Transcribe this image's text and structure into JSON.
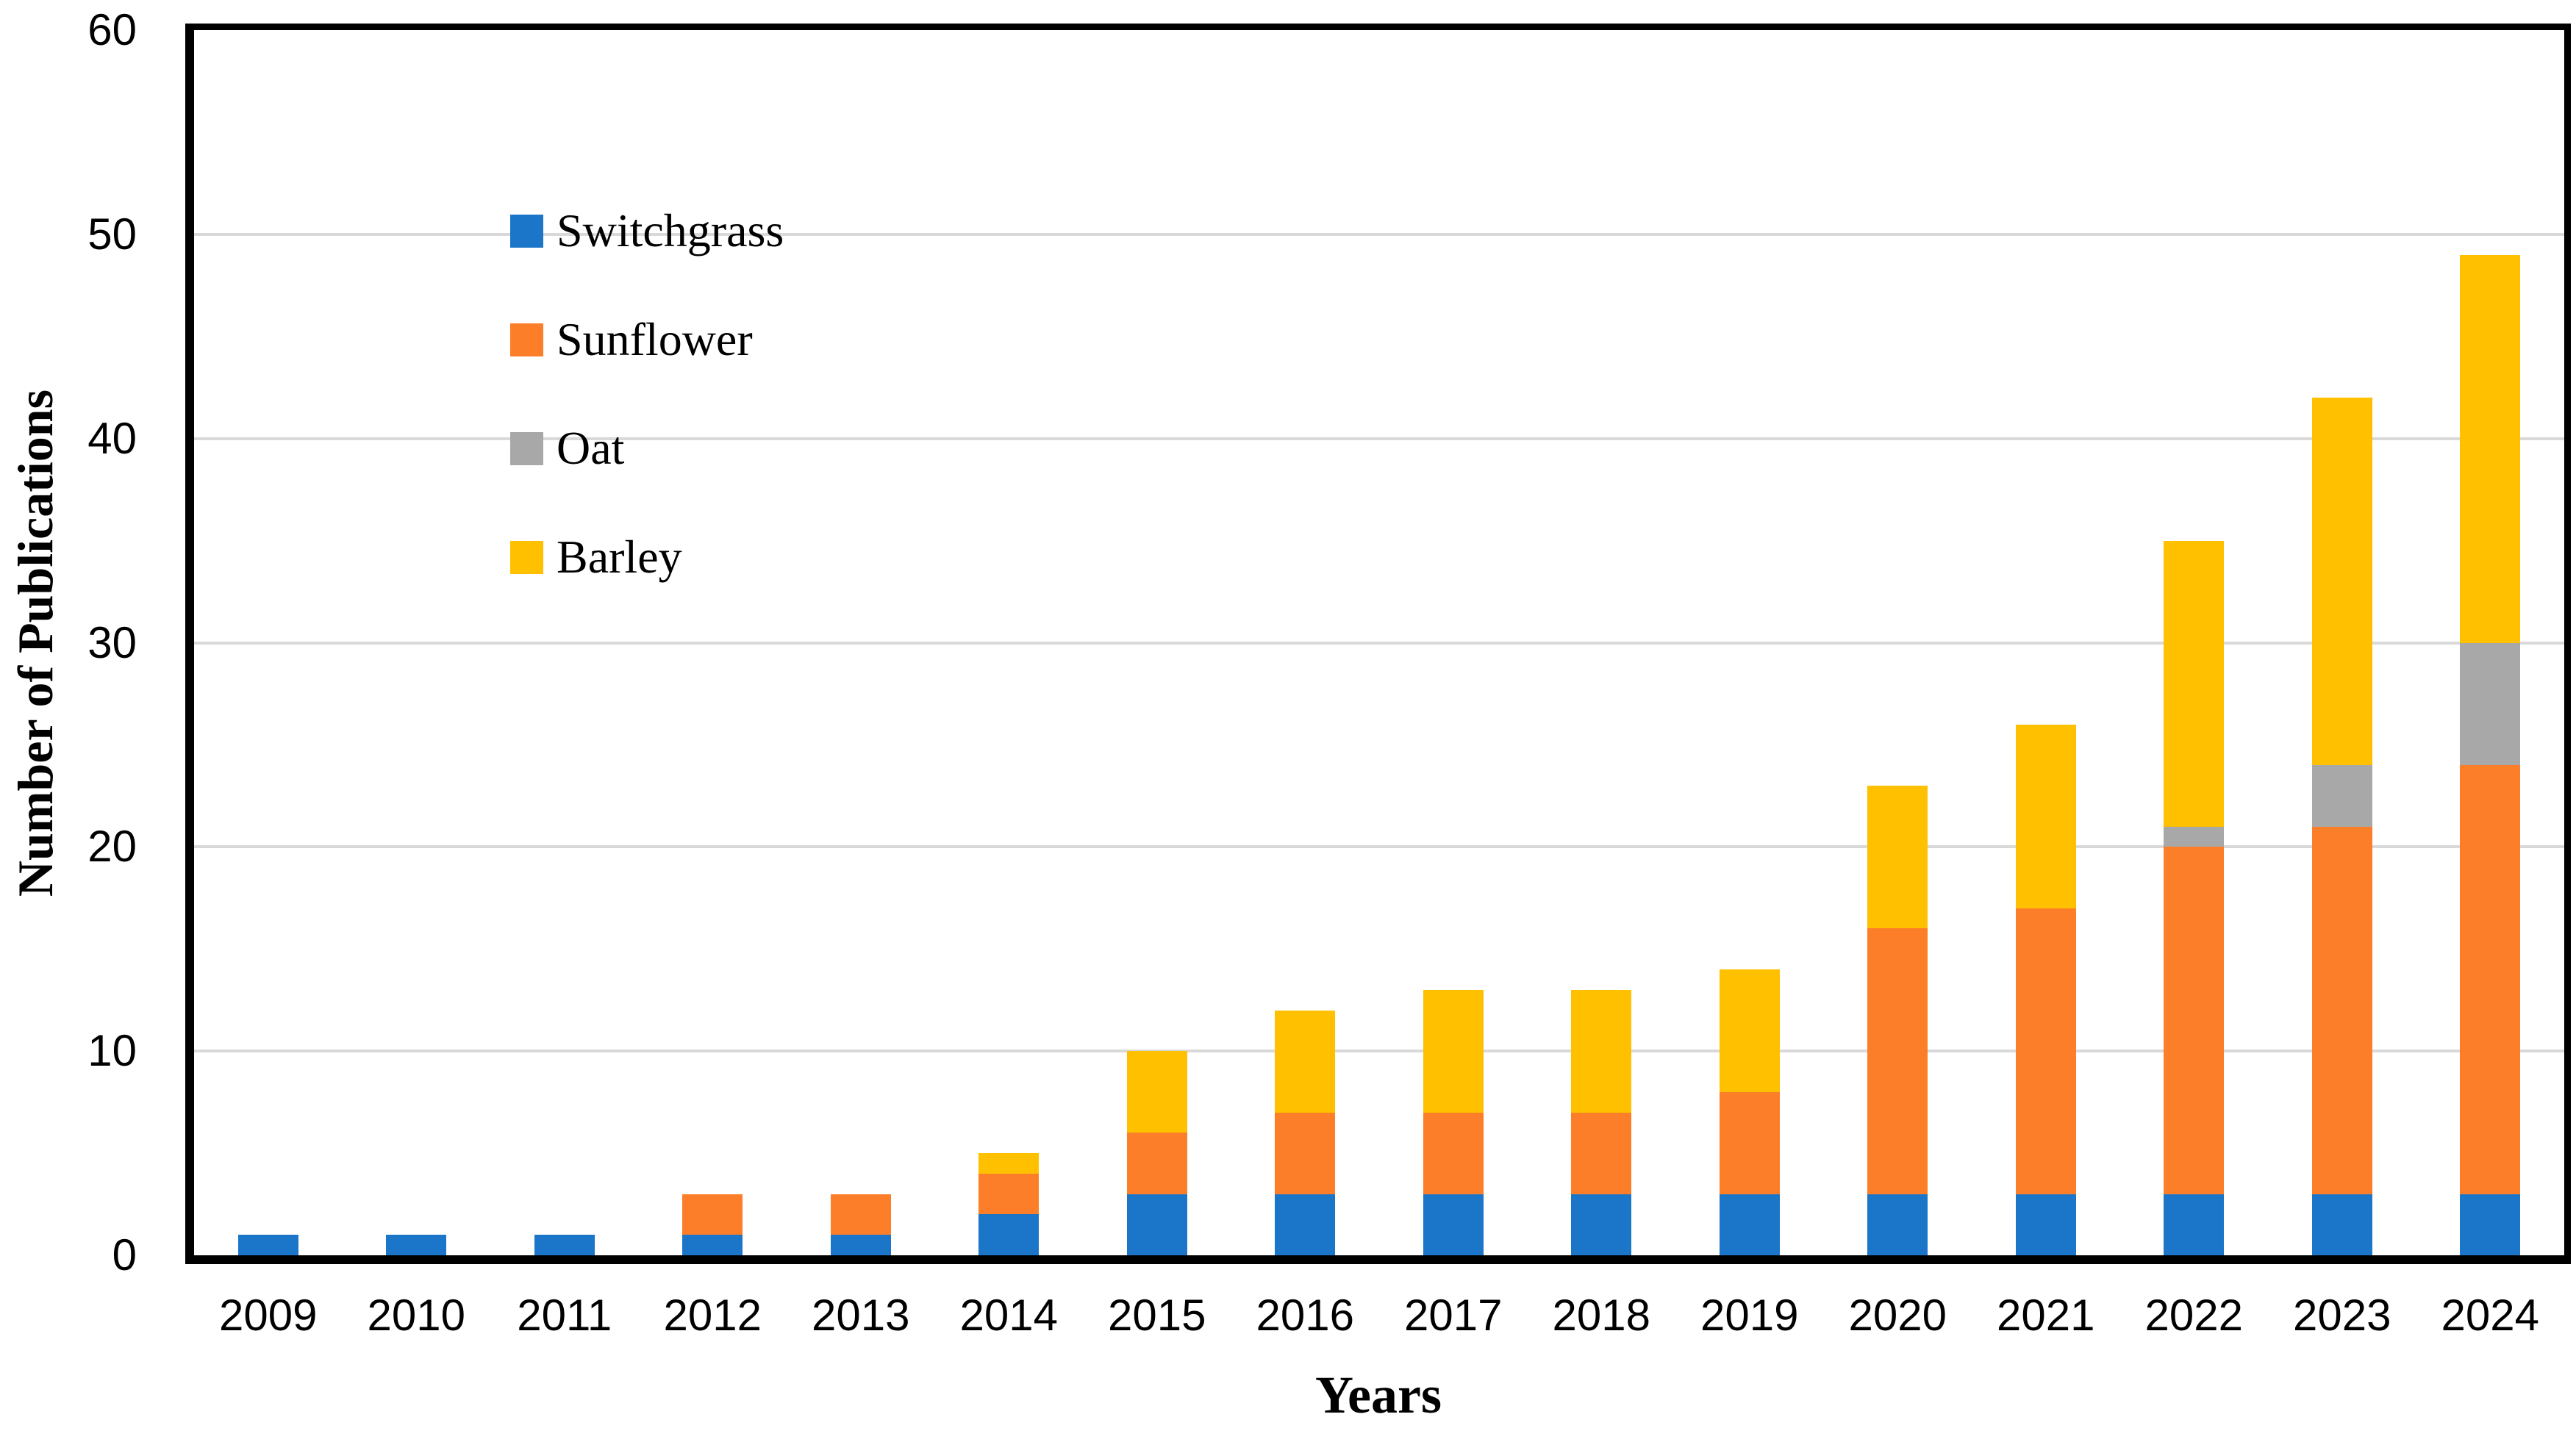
{
  "figure": {
    "description": "Stacked bar chart of number of publications per year by crop"
  },
  "chart_data": {
    "type": "bar",
    "stacked": true,
    "title": "",
    "xlabel": "Years",
    "ylabel": "Number of Publications",
    "ylim": [
      0,
      60
    ],
    "yticks": [
      0,
      10,
      20,
      30,
      40,
      50,
      60
    ],
    "grid": "horizontal",
    "gridline_color": "#d9d9d9",
    "axis_color": "#000000",
    "legend_position": "upper-left-inside",
    "categories": [
      "2009",
      "2010",
      "2011",
      "2012",
      "2013",
      "2014",
      "2015",
      "2016",
      "2017",
      "2018",
      "2019",
      "2020",
      "2021",
      "2022",
      "2023",
      "2024"
    ],
    "series": [
      {
        "name": "Switchgrass",
        "color": "#1b75c8",
        "values": [
          1,
          1,
          1,
          1,
          1,
          2,
          3,
          3,
          3,
          3,
          3,
          3,
          3,
          3,
          3,
          3
        ]
      },
      {
        "name": "Sunflower",
        "color": "#fc7e29",
        "values": [
          0,
          0,
          0,
          2,
          2,
          2,
          3,
          4,
          4,
          4,
          5,
          13,
          14,
          17,
          18,
          21
        ]
      },
      {
        "name": "Oat",
        "color": "#a8a8a8",
        "values": [
          0,
          0,
          0,
          0,
          0,
          0,
          0,
          0,
          0,
          0,
          0,
          0,
          0,
          1,
          3,
          6
        ]
      },
      {
        "name": "Barley",
        "color": "#ffc000",
        "values": [
          0,
          0,
          0,
          0,
          0,
          1,
          4,
          5,
          6,
          6,
          6,
          7,
          9,
          14,
          18,
          19
        ]
      }
    ],
    "totals": [
      1,
      1,
      1,
      3,
      3,
      5,
      10,
      12,
      13,
      13,
      14,
      23,
      26,
      35,
      42,
      49
    ]
  }
}
